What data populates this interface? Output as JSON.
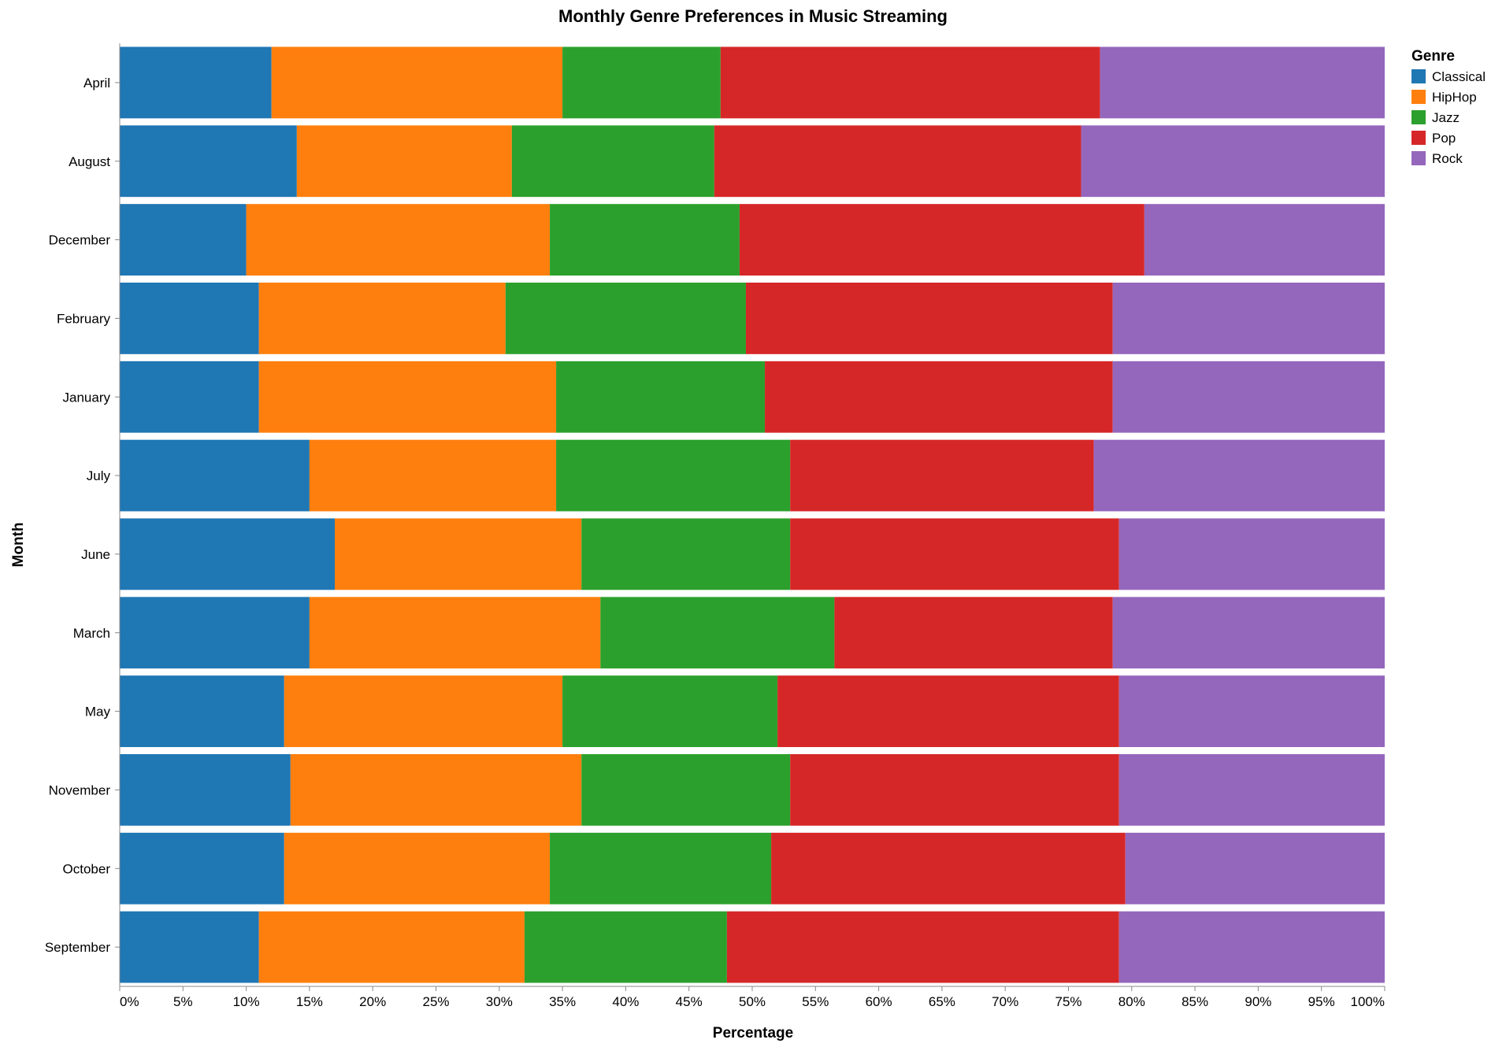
{
  "chart_data": {
    "type": "bar",
    "orientation": "horizontal",
    "stacked": "normalize",
    "title": "Monthly Genre Preferences in Music Streaming",
    "xlabel": "Percentage",
    "ylabel": "Month",
    "xlim": [
      0,
      100
    ],
    "x_ticks": [
      "0%",
      "5%",
      "10%",
      "15%",
      "20%",
      "25%",
      "30%",
      "35%",
      "40%",
      "45%",
      "50%",
      "55%",
      "60%",
      "65%",
      "70%",
      "75%",
      "80%",
      "85%",
      "90%",
      "95%",
      "100%"
    ],
    "grid": false,
    "legend": {
      "title": "Genre",
      "placement": "top-right"
    },
    "categories": [
      "April",
      "August",
      "December",
      "February",
      "January",
      "July",
      "June",
      "March",
      "May",
      "November",
      "October",
      "September"
    ],
    "series": [
      {
        "name": "Classical",
        "color": "#1f77b4",
        "values": [
          12,
          14,
          10,
          11,
          11,
          15,
          17,
          15,
          13,
          13.5,
          13,
          11
        ]
      },
      {
        "name": "HipHop",
        "color": "#ff7f0e",
        "values": [
          23,
          17,
          24,
          19.5,
          23.5,
          19.5,
          19.5,
          23,
          22,
          23,
          21,
          21
        ]
      },
      {
        "name": "Jazz",
        "color": "#2ca02c",
        "values": [
          12.5,
          16,
          15,
          19,
          16.5,
          18.5,
          16.5,
          18.5,
          17,
          16.5,
          17.5,
          16
        ]
      },
      {
        "name": "Pop",
        "color": "#d62728",
        "values": [
          30,
          29,
          32,
          29,
          27.5,
          24,
          26,
          22,
          27,
          26,
          28,
          31
        ]
      },
      {
        "name": "Rock",
        "color": "#9467bd",
        "values": [
          22.5,
          24,
          19,
          21.5,
          21.5,
          23,
          21,
          21.5,
          21,
          21,
          20.5,
          21
        ]
      }
    ]
  }
}
